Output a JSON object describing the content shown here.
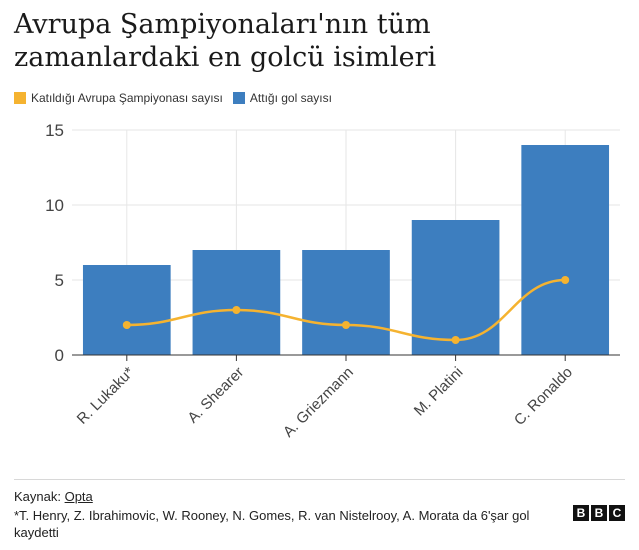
{
  "title": "Avrupa Şampiyonaları'nın tüm zamanlardaki en golcü isimleri",
  "legend": {
    "line_label": "Katıldığı Avrupa Şampiyonası sayısı",
    "bar_label": "Attığı gol sayısı"
  },
  "colors": {
    "bar": "#3d7ebf",
    "line": "#f5b330",
    "grid": "#e6e6e6",
    "axis": "#333333"
  },
  "chart_data": {
    "type": "bar",
    "categories": [
      "R. Lukaku*",
      "A. Shearer",
      "A. Griezmann",
      "M. Platini",
      "C. Ronaldo"
    ],
    "series": [
      {
        "name": "Attığı gol sayısı",
        "type": "bar",
        "values": [
          6,
          7,
          7,
          9,
          14
        ]
      },
      {
        "name": "Katıldığı Avrupa Şampiyonası sayısı",
        "type": "line",
        "values": [
          2,
          3,
          2,
          1,
          5
        ]
      }
    ],
    "ylim": [
      0,
      15
    ],
    "yticks": [
      0,
      5,
      10,
      15
    ],
    "grid": true,
    "legend_position": "top-left"
  },
  "footer": {
    "source_prefix": "Kaynak: ",
    "source_link": "Opta",
    "note": "*T. Henry, Z. Ibrahimovic, W. Rooney, N. Gomes, R. van Nistelrooy, A. Morata da 6'şar gol kaydetti",
    "logo": [
      "B",
      "B",
      "C"
    ]
  }
}
